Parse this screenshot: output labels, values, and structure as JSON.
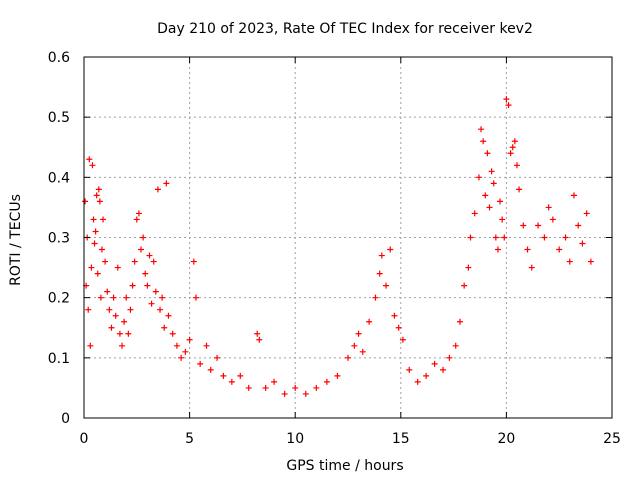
{
  "chart_data": {
    "type": "scatter",
    "title": "Day 210 of 2023, Rate Of TEC Index for receiver kev2",
    "xlabel": "GPS time / hours",
    "ylabel": "ROTI / TECUs",
    "xlim": [
      0,
      25
    ],
    "ylim": [
      0,
      0.6
    ],
    "xticks": [
      0,
      5,
      10,
      15,
      20,
      25
    ],
    "yticks": [
      0,
      0.1,
      0.2,
      0.3,
      0.4,
      0.5,
      0.6
    ],
    "xtick_labels": [
      "0",
      "5",
      "10",
      "15",
      "20",
      "25"
    ],
    "ytick_labels": [
      "0",
      "0.1",
      "0.2",
      "0.3",
      "0.4",
      "0.5",
      "0.6"
    ],
    "grid": true,
    "marker": "+",
    "color": "#ff0000",
    "points": [
      [
        0.05,
        0.36
      ],
      [
        0.1,
        0.22
      ],
      [
        0.15,
        0.3
      ],
      [
        0.2,
        0.18
      ],
      [
        0.25,
        0.43
      ],
      [
        0.3,
        0.12
      ],
      [
        0.35,
        0.25
      ],
      [
        0.4,
        0.42
      ],
      [
        0.45,
        0.33
      ],
      [
        0.5,
        0.29
      ],
      [
        0.55,
        0.31
      ],
      [
        0.6,
        0.37
      ],
      [
        0.65,
        0.24
      ],
      [
        0.7,
        0.38
      ],
      [
        0.75,
        0.36
      ],
      [
        0.8,
        0.2
      ],
      [
        0.85,
        0.28
      ],
      [
        0.9,
        0.33
      ],
      [
        1.0,
        0.26
      ],
      [
        1.1,
        0.21
      ],
      [
        1.2,
        0.18
      ],
      [
        1.3,
        0.15
      ],
      [
        1.4,
        0.2
      ],
      [
        1.5,
        0.17
      ],
      [
        1.6,
        0.25
      ],
      [
        1.7,
        0.14
      ],
      [
        1.8,
        0.12
      ],
      [
        1.9,
        0.16
      ],
      [
        2.0,
        0.2
      ],
      [
        2.1,
        0.14
      ],
      [
        2.2,
        0.18
      ],
      [
        2.3,
        0.22
      ],
      [
        2.4,
        0.26
      ],
      [
        2.5,
        0.33
      ],
      [
        2.6,
        0.34
      ],
      [
        2.7,
        0.28
      ],
      [
        2.8,
        0.3
      ],
      [
        2.9,
        0.24
      ],
      [
        3.0,
        0.22
      ],
      [
        3.1,
        0.27
      ],
      [
        3.2,
        0.19
      ],
      [
        3.3,
        0.26
      ],
      [
        3.4,
        0.21
      ],
      [
        3.5,
        0.38
      ],
      [
        3.6,
        0.18
      ],
      [
        3.7,
        0.2
      ],
      [
        3.8,
        0.15
      ],
      [
        3.9,
        0.39
      ],
      [
        4.0,
        0.17
      ],
      [
        4.2,
        0.14
      ],
      [
        4.4,
        0.12
      ],
      [
        4.6,
        0.1
      ],
      [
        4.8,
        0.11
      ],
      [
        5.0,
        0.13
      ],
      [
        5.2,
        0.26
      ],
      [
        5.3,
        0.2
      ],
      [
        5.5,
        0.09
      ],
      [
        5.8,
        0.12
      ],
      [
        6.0,
        0.08
      ],
      [
        6.3,
        0.1
      ],
      [
        6.6,
        0.07
      ],
      [
        7.0,
        0.06
      ],
      [
        7.4,
        0.07
      ],
      [
        7.8,
        0.05
      ],
      [
        8.2,
        0.14
      ],
      [
        8.3,
        0.13
      ],
      [
        8.6,
        0.05
      ],
      [
        9.0,
        0.06
      ],
      [
        9.5,
        0.04
      ],
      [
        10.0,
        0.05
      ],
      [
        10.5,
        0.04
      ],
      [
        11.0,
        0.05
      ],
      [
        11.5,
        0.06
      ],
      [
        12.0,
        0.07
      ],
      [
        12.5,
        0.1
      ],
      [
        12.8,
        0.12
      ],
      [
        13.0,
        0.14
      ],
      [
        13.2,
        0.11
      ],
      [
        13.5,
        0.16
      ],
      [
        13.8,
        0.2
      ],
      [
        14.0,
        0.24
      ],
      [
        14.1,
        0.27
      ],
      [
        14.3,
        0.22
      ],
      [
        14.5,
        0.28
      ],
      [
        14.7,
        0.17
      ],
      [
        14.9,
        0.15
      ],
      [
        15.1,
        0.13
      ],
      [
        15.4,
        0.08
      ],
      [
        15.8,
        0.06
      ],
      [
        16.2,
        0.07
      ],
      [
        16.6,
        0.09
      ],
      [
        17.0,
        0.08
      ],
      [
        17.3,
        0.1
      ],
      [
        17.6,
        0.12
      ],
      [
        17.8,
        0.16
      ],
      [
        18.0,
        0.22
      ],
      [
        18.2,
        0.25
      ],
      [
        18.3,
        0.3
      ],
      [
        18.5,
        0.34
      ],
      [
        18.7,
        0.4
      ],
      [
        18.8,
        0.48
      ],
      [
        18.9,
        0.46
      ],
      [
        19.0,
        0.37
      ],
      [
        19.1,
        0.44
      ],
      [
        19.2,
        0.35
      ],
      [
        19.3,
        0.41
      ],
      [
        19.4,
        0.39
      ],
      [
        19.5,
        0.3
      ],
      [
        19.6,
        0.28
      ],
      [
        19.7,
        0.36
      ],
      [
        19.8,
        0.33
      ],
      [
        19.9,
        0.3
      ],
      [
        20.0,
        0.53
      ],
      [
        20.1,
        0.52
      ],
      [
        20.2,
        0.44
      ],
      [
        20.3,
        0.45
      ],
      [
        20.4,
        0.46
      ],
      [
        20.5,
        0.42
      ],
      [
        20.6,
        0.38
      ],
      [
        20.8,
        0.32
      ],
      [
        21.0,
        0.28
      ],
      [
        21.2,
        0.25
      ],
      [
        21.5,
        0.32
      ],
      [
        21.8,
        0.3
      ],
      [
        22.0,
        0.35
      ],
      [
        22.2,
        0.33
      ],
      [
        22.5,
        0.28
      ],
      [
        22.8,
        0.3
      ],
      [
        23.0,
        0.26
      ],
      [
        23.2,
        0.37
      ],
      [
        23.4,
        0.32
      ],
      [
        23.6,
        0.29
      ],
      [
        23.8,
        0.34
      ],
      [
        24.0,
        0.26
      ]
    ]
  }
}
